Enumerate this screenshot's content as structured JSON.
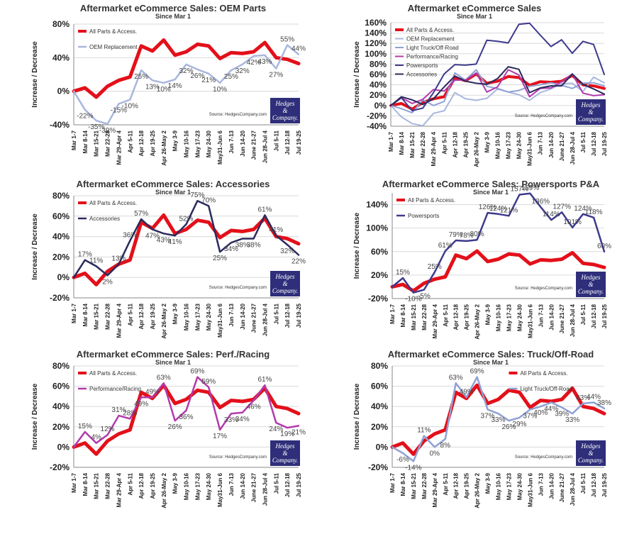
{
  "source_text": "Source: HedgesCompany.com",
  "logo": {
    "line1": "Hedges",
    "line2": "&",
    "line3": "Company.",
    "color": "#2e2e7a"
  },
  "colors": {
    "all": "#e3101a",
    "oem": "#a9b7dd",
    "truck": "#8fa1d4",
    "perf": "#b23aac",
    "power": "#3e3a8c",
    "acc": "#2a2a5e"
  },
  "categories": [
    "Mar 1-7",
    "Mar 8-14",
    "Mar 15-21",
    "Mar 22-28",
    "Mar 29-Apr 4",
    "Apr 5-11",
    "Apr 12-18",
    "Apr 19-25",
    "Apr 26-May 2",
    "May 3-9",
    "May 10-16",
    "May 17-23",
    "May 24-30",
    "May31-Jun 6",
    "Jun 7-13",
    "Jun 14-20",
    "June 21-27",
    "Jun 28-Jul 4",
    "Jul 5-11",
    "Jul 12-18",
    "Jul 19-25"
  ],
  "chart_data": [
    {
      "type": "line",
      "title": "Aftermarket eCommerce Sales: OEM Parts",
      "subtitle": "Since Mar 1",
      "ylabel": "Increase / Decrease",
      "ylim": [
        -40,
        80
      ],
      "yticks": [
        -40,
        0,
        40,
        80
      ],
      "yticklabels": [
        "-40%",
        "0%",
        "40%",
        "80%"
      ],
      "legend": "top-left",
      "series": [
        {
          "name": "All Parts & Access.",
          "color": "#e3101a",
          "width": 5,
          "values": [
            0,
            4,
            -7,
            6,
            13,
            17,
            54,
            48,
            61,
            43,
            47,
            56,
            54,
            39,
            46,
            45,
            47,
            58,
            40,
            38,
            33
          ]
        },
        {
          "name": "OEM Replacement",
          "color": "#a9b7dd",
          "width": 2.5,
          "values": [
            0,
            -22,
            -35,
            -39,
            -15,
            -10,
            25,
            13,
            10,
            14,
            32,
            26,
            21,
            10,
            25,
            32,
            42,
            43,
            27,
            55,
            44
          ]
        }
      ],
      "data_labels": [
        "",
        "-22%",
        "-35%",
        "-39%",
        "-15%",
        "-10%",
        "25%",
        "13%",
        "10%",
        "14%",
        "32%",
        "26%",
        "21%",
        "10%",
        "25%",
        "32%",
        "42%",
        "43%",
        "27%",
        "55%",
        "44%"
      ]
    },
    {
      "type": "line",
      "title": "Aftermarket eCommerce Sales",
      "subtitle": "Since Mar 1",
      "ylabel": "Increase / Decrease",
      "ylim": [
        -40,
        160
      ],
      "yticks": [
        -40,
        -20,
        0,
        20,
        40,
        60,
        80,
        100,
        120,
        140,
        160
      ],
      "yticklabels": [
        "-40%",
        "-20%",
        "0%",
        "20%",
        "40%",
        "60%",
        "80%",
        "100%",
        "120%",
        "140%",
        "160%"
      ],
      "legend": "top-left",
      "series": [
        {
          "name": "All Parts & Access.",
          "color": "#e3101a",
          "width": 4,
          "values": [
            0,
            4,
            -7,
            6,
            13,
            17,
            54,
            48,
            61,
            43,
            47,
            56,
            54,
            39,
            46,
            45,
            47,
            58,
            40,
            38,
            33
          ]
        },
        {
          "name": "OEM Replacement",
          "color": "#a9b7dd",
          "width": 2,
          "values": [
            0,
            -22,
            -35,
            -39,
            -15,
            -10,
            25,
            13,
            10,
            14,
            32,
            26,
            21,
            10,
            25,
            32,
            42,
            43,
            27,
            55,
            44
          ]
        },
        {
          "name": "Light Truck/Off-Road",
          "color": "#8fa1d4",
          "width": 2,
          "values": [
            0,
            -6,
            -14,
            11,
            0,
            8,
            63,
            49,
            69,
            37,
            33,
            26,
            29,
            37,
            40,
            44,
            39,
            33,
            43,
            44,
            38
          ]
        },
        {
          "name": "Performance/Racing",
          "color": "#b23aac",
          "width": 2,
          "values": [
            0,
            15,
            4,
            12,
            31,
            28,
            49,
            49,
            63,
            26,
            36,
            69,
            59,
            17,
            33,
            34,
            46,
            61,
            24,
            19,
            21
          ]
        },
        {
          "name": "Powersports",
          "color": "#3e3a8c",
          "width": 2,
          "values": [
            0,
            15,
            -10,
            -5,
            25,
            61,
            79,
            78,
            80,
            126,
            124,
            121,
            157,
            159,
            136,
            114,
            127,
            101,
            124,
            118,
            60
          ]
        },
        {
          "name": "Accessories",
          "color": "#2a2a5e",
          "width": 2,
          "values": [
            0,
            17,
            11,
            2,
            13,
            36,
            57,
            47,
            43,
            41,
            52,
            75,
            70,
            25,
            34,
            38,
            38,
            61,
            41,
            32,
            22
          ]
        }
      ]
    },
    {
      "type": "line",
      "title": "Aftermarket eCommerce Sales: Accessories",
      "subtitle": "Since Mar 1",
      "ylabel": "Increase / Decrease",
      "ylim": [
        -20,
        80
      ],
      "yticks": [
        -20,
        0,
        20,
        40,
        60,
        80
      ],
      "yticklabels": [
        "-20%",
        "0%",
        "20%",
        "40%",
        "60%",
        "80%"
      ],
      "legend": "top-left",
      "series": [
        {
          "name": "All Parts & Access.",
          "color": "#e3101a",
          "width": 5,
          "values": [
            0,
            4,
            -7,
            6,
            13,
            17,
            54,
            48,
            61,
            43,
            47,
            56,
            54,
            39,
            46,
            45,
            47,
            58,
            40,
            38,
            33
          ]
        },
        {
          "name": "Accessories",
          "color": "#2a2a5e",
          "width": 2.5,
          "values": [
            0,
            17,
            11,
            2,
            13,
            36,
            57,
            47,
            43,
            41,
            52,
            75,
            70,
            25,
            34,
            38,
            38,
            61,
            41,
            32,
            22
          ]
        }
      ],
      "data_labels": [
        "",
        "17%",
        "11%",
        "2%",
        "13%",
        "36%",
        "57%",
        "47%",
        "43%",
        "41%",
        "52%",
        "75%",
        "70%",
        "25%",
        "34%",
        "38%",
        "38%",
        "61%",
        "41%",
        "32%",
        "22%"
      ]
    },
    {
      "type": "line",
      "title": "Aftermarket eCommerce Sales: Powersports P&A",
      "subtitle": "Since Mar 1",
      "ylabel": "Increase / Decrease",
      "ylim": [
        -20,
        160
      ],
      "yticks": [
        -20,
        20,
        60,
        100,
        140
      ],
      "yticklabels": [
        "-20%",
        "20%",
        "60%",
        "100%",
        "140%"
      ],
      "legend": "top-left",
      "series": [
        {
          "name": "All Parts & Access.",
          "color": "#e3101a",
          "width": 5,
          "values": [
            0,
            4,
            -7,
            6,
            13,
            17,
            54,
            48,
            61,
            43,
            47,
            56,
            54,
            39,
            46,
            45,
            47,
            58,
            40,
            38,
            33
          ]
        },
        {
          "name": "Powersports",
          "color": "#3e3a8c",
          "width": 2.5,
          "values": [
            0,
            15,
            -10,
            -5,
            25,
            61,
            79,
            78,
            80,
            126,
            124,
            121,
            157,
            159,
            136,
            114,
            127,
            101,
            124,
            118,
            60
          ]
        }
      ],
      "data_labels": [
        "",
        "15%",
        "-10%",
        "-5%",
        "25%",
        "61%",
        "79%",
        "78%",
        "80%",
        "126%",
        "124%",
        "121%",
        "157%",
        "159%",
        "136%",
        "114%",
        "127%",
        "101%",
        "124%",
        "118%",
        "60%"
      ]
    },
    {
      "type": "line",
      "title": "Aftermarket eCommerce Sales: Perf./Racing",
      "subtitle": "Since Mar 1",
      "ylabel": "Increase / Decrease",
      "ylim": [
        -20,
        80
      ],
      "yticks": [
        -20,
        0,
        20,
        40,
        60,
        80
      ],
      "yticklabels": [
        "-20%",
        "0%",
        "20%",
        "40%",
        "60%",
        "80%"
      ],
      "legend": "top-left",
      "series": [
        {
          "name": "All Parts & Access.",
          "color": "#e3101a",
          "width": 5,
          "values": [
            0,
            4,
            -7,
            6,
            13,
            17,
            54,
            48,
            61,
            43,
            47,
            56,
            54,
            39,
            46,
            45,
            47,
            58,
            40,
            38,
            33
          ]
        },
        {
          "name": "Performance/Racing",
          "color": "#b23aac",
          "width": 2.5,
          "values": [
            0,
            15,
            4,
            12,
            31,
            28,
            49,
            49,
            63,
            26,
            36,
            69,
            59,
            17,
            33,
            34,
            46,
            61,
            24,
            19,
            21
          ]
        }
      ],
      "data_labels": [
        "",
        "15%",
        "4%",
        "12%",
        "31%",
        "28%",
        "49%",
        "49%",
        "63%",
        "26%",
        "36%",
        "69%",
        "59%",
        "17%",
        "33%",
        "34%",
        "46%",
        "61%",
        "24%",
        "19%",
        "21%"
      ]
    },
    {
      "type": "line",
      "title": "Aftermarket eCommerce Sales: Truck/Off-Road",
      "subtitle": "Since Mar 1",
      "ylabel": "Increase / Decrease",
      "ylim": [
        -20,
        80
      ],
      "yticks": [
        -20,
        0,
        20,
        40,
        60,
        80
      ],
      "yticklabels": [
        "-20%",
        "0%",
        "20%",
        "40%",
        "60%",
        "80%"
      ],
      "legend": "top-right",
      "series": [
        {
          "name": "All Parts & Access.",
          "color": "#e3101a",
          "width": 5,
          "values": [
            0,
            4,
            -7,
            6,
            13,
            17,
            54,
            48,
            61,
            43,
            47,
            56,
            54,
            39,
            46,
            45,
            47,
            58,
            40,
            38,
            33
          ]
        },
        {
          "name": "Light Truck/Off-Road",
          "color": "#8fa1d4",
          "width": 2.5,
          "values": [
            0,
            -6,
            -14,
            11,
            0,
            8,
            63,
            49,
            69,
            37,
            33,
            26,
            29,
            37,
            40,
            44,
            39,
            33,
            43,
            44,
            38
          ]
        }
      ],
      "data_labels": [
        "",
        "-6%",
        "-14%",
        "11%",
        "0%",
        "8%",
        "63%",
        "49%",
        "69%",
        "37%",
        "33%",
        "26%",
        "29%",
        "37%",
        "40%",
        "44%",
        "39%",
        "33%",
        "43%",
        "44%",
        "38%"
      ]
    }
  ]
}
